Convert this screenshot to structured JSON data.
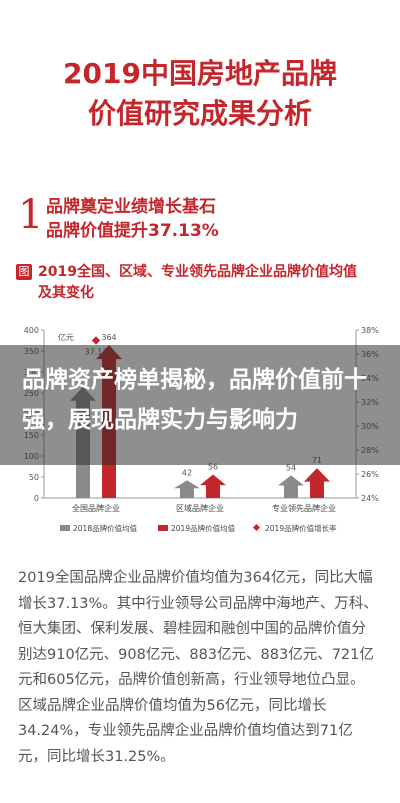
{
  "header": {
    "title_line1": "2019中国房地产品牌",
    "title_line2": "价值研究成果分析"
  },
  "section": {
    "number": "1",
    "line1": "品牌奠定业绩增长基石",
    "line2": "品牌价值提升37.13%"
  },
  "figure": {
    "badge": "图",
    "title": "2019全国、区域、专业领先品牌企业品牌价值均值及其变化"
  },
  "chart_data": {
    "type": "bar",
    "categories": [
      "全国品牌企业",
      "区域品牌企业",
      "专业领先品牌企业"
    ],
    "series": [
      {
        "name": "2018品牌价值均值",
        "values": [
          265,
          42,
          54
        ],
        "color": "#8a8a8a"
      },
      {
        "name": "2019品牌价值均值",
        "values": [
          364,
          56,
          71
        ],
        "color": "#c3262b"
      },
      {
        "name": "2019品牌价值增长率",
        "values": [
          37.13,
          34.24,
          31.25
        ],
        "color": "#c3262b"
      }
    ],
    "data_labels_left": [
      "",
      "42",
      "54"
    ],
    "data_labels_right": [
      "364",
      "56",
      "71"
    ],
    "growth_label_visible": "37.13",
    "yunit": "亿元",
    "ylim": [
      0,
      400
    ],
    "y_ticks": [
      "0",
      "50",
      "100",
      "150",
      "200",
      "250",
      "300",
      "350",
      "400"
    ],
    "y2lim": [
      24,
      38
    ],
    "y2_ticks": [
      "24%",
      "26%",
      "28%",
      "30%",
      "32%",
      "34%",
      "36%",
      "38%"
    ],
    "legend": [
      "2018品牌价值均值",
      "2019品牌价值均值",
      "2019品牌价值增长率"
    ],
    "legend_position": "bottom"
  },
  "overlay": {
    "text": "品牌资产榜单揭秘，品牌价值前十强，展现品牌实力与影响力"
  },
  "body": {
    "paragraph": "2019全国品牌企业品牌价值均值为364亿元，同比大幅增长37.13%。其中行业领导公司品牌中海地产、万科、恒大集团、保利发展、碧桂园和融创中国的品牌价值分别达910亿元、908亿元、883亿元、883亿元、721亿元和605亿元，品牌价值创新高，行业领导地位凸显。区域品牌企业品牌价值均值为56亿元，同比增长34.24%，专业领先品牌企业品牌价值均值达到71亿元，同比增长31.25%。"
  }
}
